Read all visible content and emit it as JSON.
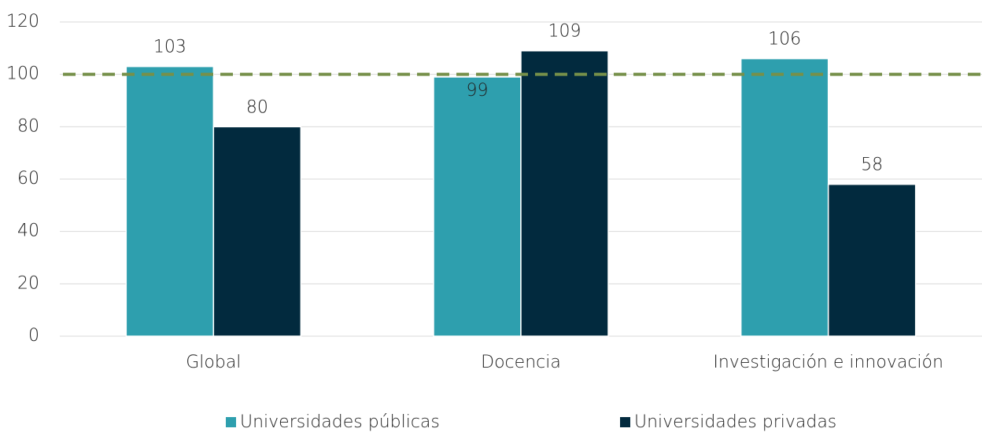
{
  "chart_data": {
    "type": "bar",
    "categories": [
      "Global",
      "Docencia",
      "Investigación e innovación"
    ],
    "series": [
      {
        "name": "Universidades públicas",
        "color": "#2e9fae",
        "values": [
          103,
          99,
          106
        ]
      },
      {
        "name": "Universidades privadas",
        "color": "#022a3e",
        "values": [
          80,
          109,
          58
        ]
      }
    ],
    "ylim": [
      0,
      120
    ],
    "yticks": [
      0,
      20,
      40,
      60,
      80,
      100,
      120
    ],
    "grid": true,
    "reference_line": {
      "value": 100,
      "color": "#76904a"
    },
    "legend": "bottom"
  }
}
